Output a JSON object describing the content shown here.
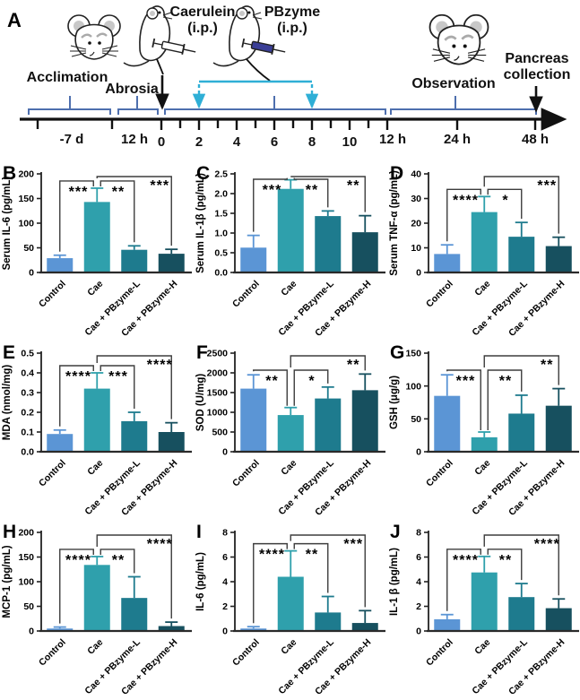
{
  "timeline": {
    "panel_label": "A",
    "stage_labels": {
      "acclimation": "Acclimation",
      "abrosia": "Abrosia",
      "caerulein_1": "Caerulein",
      "caerulein_2": "(i.p.)",
      "pbzyme_1": "PBzyme",
      "pbzyme_2": "(i.p.)",
      "observation": "Observation",
      "pancreas_1": "Pancreas",
      "pancreas_2": "collection"
    },
    "ticks": [
      "-7 d",
      "12 h",
      "0",
      "2",
      "4",
      "6",
      "8",
      "10",
      "12 h",
      "24 h",
      "48 h"
    ]
  },
  "style": {
    "bar_colors": [
      "#5B95D5",
      "#2FA0AC",
      "#1E7B8E",
      "#17505F"
    ],
    "bracket_blue": "#4E6FAE",
    "cyan": "#2FAFD6",
    "sig_bracket": "#3d3d3d",
    "axis_color": "#1a1a1a",
    "syringe_blue": "#3A3E96"
  },
  "chart_data": [
    {
      "type": "bar",
      "id": "B",
      "ylabel": "Serum IL-6 (pg/mL)",
      "ymax": 200,
      "yticks": [
        "0",
        "50",
        "100",
        "150",
        "200"
      ],
      "categories": [
        "Control",
        "Cae",
        "Cae + PBzyme-L",
        "Cae + PBzyme-H"
      ],
      "values": [
        29,
        143,
        46,
        38
      ],
      "errors": [
        6,
        28,
        8,
        9
      ],
      "sig": [
        {
          "from": 0,
          "to": 1,
          "stars": "***"
        },
        {
          "from": 1,
          "to": 2,
          "stars": "**"
        },
        {
          "from": 1,
          "to": 3,
          "stars": "***"
        }
      ]
    },
    {
      "type": "bar",
      "id": "C",
      "ylabel": "Serum IL-1β (pg/mL)",
      "ymax": 2.5,
      "yticks": [
        "0.0",
        "0.5",
        "1.0",
        "1.5",
        "2.0",
        "2.5"
      ],
      "categories": [
        "Control",
        "Cae",
        "Cae + PBzyme-L",
        "Cae + PBzyme-H"
      ],
      "values": [
        0.63,
        2.12,
        1.43,
        1.02
      ],
      "errors": [
        0.31,
        0.23,
        0.13,
        0.42
      ],
      "sig": [
        {
          "from": 0,
          "to": 1,
          "stars": "***"
        },
        {
          "from": 1,
          "to": 2,
          "stars": "**"
        },
        {
          "from": 1,
          "to": 3,
          "stars": "**"
        }
      ]
    },
    {
      "type": "bar",
      "id": "D",
      "ylabel": "Serum TNF-α (pg/mL)",
      "ymax": 40,
      "yticks": [
        "0",
        "10",
        "20",
        "30",
        "40"
      ],
      "categories": [
        "Control",
        "Cae",
        "Cae + PBzyme-L",
        "Cae + PBzyme-H"
      ],
      "values": [
        7.5,
        24.5,
        14.5,
        10.7
      ],
      "errors": [
        3.7,
        6.3,
        5.8,
        3.6
      ],
      "sig": [
        {
          "from": 0,
          "to": 1,
          "stars": "****"
        },
        {
          "from": 1,
          "to": 2,
          "stars": "*"
        },
        {
          "from": 1,
          "to": 3,
          "stars": "***"
        }
      ]
    },
    {
      "type": "bar",
      "id": "E",
      "ylabel": "MDA (nmol/mg)",
      "ymax": 0.5,
      "yticks": [
        "0.0",
        "0.1",
        "0.2",
        "0.3",
        "0.4",
        "0.5"
      ],
      "categories": [
        "Control",
        "Cae",
        "Cae + PBzyme-L",
        "Cae + PBzyme-H"
      ],
      "values": [
        0.09,
        0.32,
        0.155,
        0.1
      ],
      "errors": [
        0.02,
        0.08,
        0.045,
        0.047
      ],
      "sig": [
        {
          "from": 0,
          "to": 1,
          "stars": "****"
        },
        {
          "from": 1,
          "to": 2,
          "stars": "***"
        },
        {
          "from": 1,
          "to": 3,
          "stars": "****"
        }
      ]
    },
    {
      "type": "bar",
      "id": "F",
      "ylabel": "SOD (U/mg)",
      "ymax": 2500,
      "yticks": [
        "0",
        "500",
        "1000",
        "1500",
        "2000",
        "2500"
      ],
      "categories": [
        "Control",
        "Cae",
        "Cae + PBzyme-L",
        "Cae + PBzyme-H"
      ],
      "values": [
        1600,
        930,
        1350,
        1560
      ],
      "errors": [
        350,
        190,
        290,
        410
      ],
      "sig": [
        {
          "from": 0,
          "to": 1,
          "stars": "**"
        },
        {
          "from": 1,
          "to": 2,
          "stars": "*"
        },
        {
          "from": 1,
          "to": 3,
          "stars": "**"
        }
      ]
    },
    {
      "type": "bar",
      "id": "G",
      "ylabel": "GSH (μg/g)",
      "ymax": 150,
      "yticks": [
        "0",
        "50",
        "100",
        "150"
      ],
      "categories": [
        "Control",
        "Cae",
        "Cae + PBzyme-L",
        "Cae + PBzyme-H"
      ],
      "values": [
        85,
        22,
        58,
        70
      ],
      "errors": [
        32,
        8,
        28,
        26
      ],
      "sig": [
        {
          "from": 0,
          "to": 1,
          "stars": "***"
        },
        {
          "from": 1,
          "to": 2,
          "stars": "**"
        },
        {
          "from": 1,
          "to": 3,
          "stars": "**"
        }
      ]
    },
    {
      "type": "bar",
      "id": "H",
      "ylabel": "MCP-1 (pg/mL)",
      "ymax": 200,
      "yticks": [
        "0",
        "50",
        "100",
        "150",
        "200"
      ],
      "categories": [
        "Control",
        "Cae",
        "Cae + PBzyme-L",
        "Cae + PBzyme-H"
      ],
      "values": [
        5,
        134,
        67,
        10
      ],
      "errors": [
        3,
        17,
        43,
        8
      ],
      "sig": [
        {
          "from": 0,
          "to": 1,
          "stars": "****"
        },
        {
          "from": 1,
          "to": 2,
          "stars": "**"
        },
        {
          "from": 1,
          "to": 3,
          "stars": "****"
        }
      ]
    },
    {
      "type": "bar",
      "id": "I",
      "ylabel": "IL-6 (pg/mL)",
      "ymax": 8,
      "yticks": [
        "0",
        "2",
        "4",
        "6",
        "8"
      ],
      "categories": [
        "Control",
        "Cae",
        "Cae + PBzyme-L",
        "Cae + PBzyme-H"
      ],
      "values": [
        0.2,
        4.4,
        1.5,
        0.65
      ],
      "errors": [
        0.15,
        2.1,
        1.3,
        1.0
      ],
      "sig": [
        {
          "from": 0,
          "to": 1,
          "stars": "****"
        },
        {
          "from": 1,
          "to": 2,
          "stars": "**"
        },
        {
          "from": 1,
          "to": 3,
          "stars": "***"
        }
      ]
    },
    {
      "type": "bar",
      "id": "J",
      "ylabel": "IL-1 β (pg/mL)",
      "ymax": 8,
      "yticks": [
        "0",
        "2",
        "4",
        "6",
        "8"
      ],
      "categories": [
        "Control",
        "Cae",
        "Cae + PBzyme-L",
        "Cae + PBzyme-H"
      ],
      "values": [
        0.95,
        4.75,
        2.75,
        1.85
      ],
      "errors": [
        0.38,
        1.3,
        1.1,
        0.75
      ],
      "sig": [
        {
          "from": 0,
          "to": 1,
          "stars": "****"
        },
        {
          "from": 1,
          "to": 2,
          "stars": "**"
        },
        {
          "from": 1,
          "to": 3,
          "stars": "****"
        }
      ]
    }
  ]
}
